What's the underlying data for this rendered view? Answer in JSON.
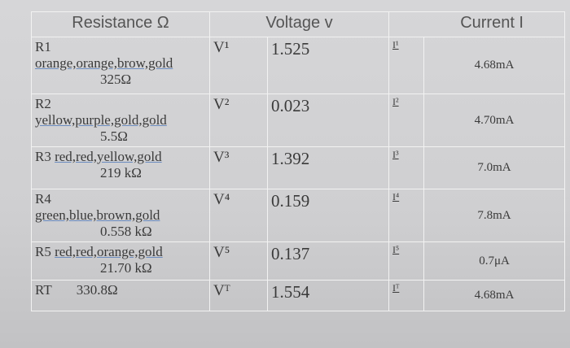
{
  "table": {
    "header": [
      "Resistance Ω",
      "Voltage v",
      "Current I"
    ],
    "rows": [
      {
        "resistor": "R1",
        "bands": "orange,orange,brow,gold",
        "resistance": "325Ω",
        "v_label": "V¹",
        "voltage": "1.525",
        "i_label": "I¹",
        "current": "4.68mA"
      },
      {
        "resistor": "R2",
        "bands": "yellow,purple,gold,gold",
        "resistance": "5.5Ω",
        "v_label": "V²",
        "voltage": "0.023",
        "i_label": "I²",
        "current": "4.70mA"
      },
      {
        "resistor": "R3",
        "bands": "red,red,yellow,gold",
        "resistance": "219 kΩ",
        "v_label": "V³",
        "voltage": "1.392",
        "i_label": "I³",
        "current": "7.0mA"
      },
      {
        "resistor": "R4",
        "bands": "green,blue,brown,gold",
        "resistance": "0.558 kΩ",
        "v_label": "V⁴",
        "voltage": "0.159",
        "i_label": "I⁴",
        "current": "7.8mA"
      },
      {
        "resistor": "R5",
        "bands": "red,red,orange,gold",
        "resistance": "21.70 kΩ",
        "v_label": "V⁵",
        "voltage": "0.137",
        "i_label": "I⁵",
        "current": "0.7μA"
      },
      {
        "resistor": "RT",
        "resistance": "330.8Ω",
        "v_label": "Vᵀ",
        "voltage": "1.554",
        "i_label": "Iᵀ",
        "current": "4.68mA"
      }
    ]
  }
}
